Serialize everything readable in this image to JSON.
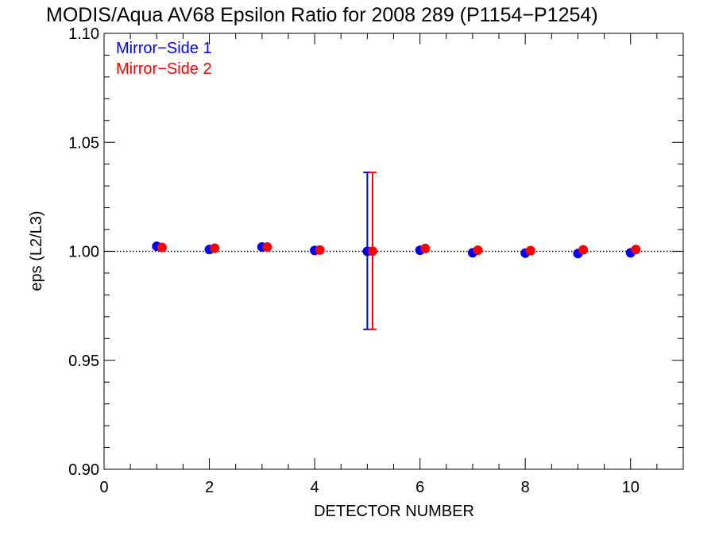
{
  "chart_data": {
    "type": "scatter",
    "title": "MODIS/Aqua AV68 Epsilon Ratio for 2008 289 (P1154−P1254)",
    "xlabel": "DETECTOR NUMBER",
    "ylabel": "eps (L2/L3)",
    "xlim": [
      0,
      11
    ],
    "ylim": [
      0.9,
      1.1
    ],
    "x_ticks": [
      0,
      2,
      4,
      6,
      8,
      10
    ],
    "x_tick_labels": [
      "0",
      "2",
      "4",
      "6",
      "8",
      "10"
    ],
    "y_ticks": [
      0.9,
      0.95,
      1.0,
      1.05,
      1.1
    ],
    "y_tick_labels": [
      "0.90",
      "0.95",
      "1.00",
      "1.05",
      "1.10"
    ],
    "reference_line": 1.0,
    "legend_position": "top-left",
    "series": [
      {
        "name": "Mirror−Side 1",
        "color": "#0000ff",
        "x": [
          1,
          2,
          3,
          4,
          5,
          6,
          7,
          8,
          9,
          10
        ],
        "y": [
          1.0023,
          1.0008,
          1.002,
          1.0004,
          1.0,
          1.0005,
          0.9993,
          0.9992,
          0.999,
          0.9993
        ],
        "error_bars": [
          {
            "x": 5,
            "low": 0.9642,
            "high": 1.0362
          }
        ]
      },
      {
        "name": "Mirror−Side 2",
        "color": "#ff0000",
        "x": [
          1.1,
          2.1,
          3.1,
          4.1,
          5.1,
          6.1,
          7.1,
          8.1,
          9.1,
          10.1
        ],
        "y": [
          1.0018,
          1.0014,
          1.002,
          1.0006,
          1.0001,
          1.0013,
          1.0005,
          1.0003,
          1.0007,
          1.0008
        ],
        "error_bars": [
          {
            "x": 5.1,
            "low": 0.9642,
            "high": 1.0362
          }
        ]
      }
    ]
  }
}
